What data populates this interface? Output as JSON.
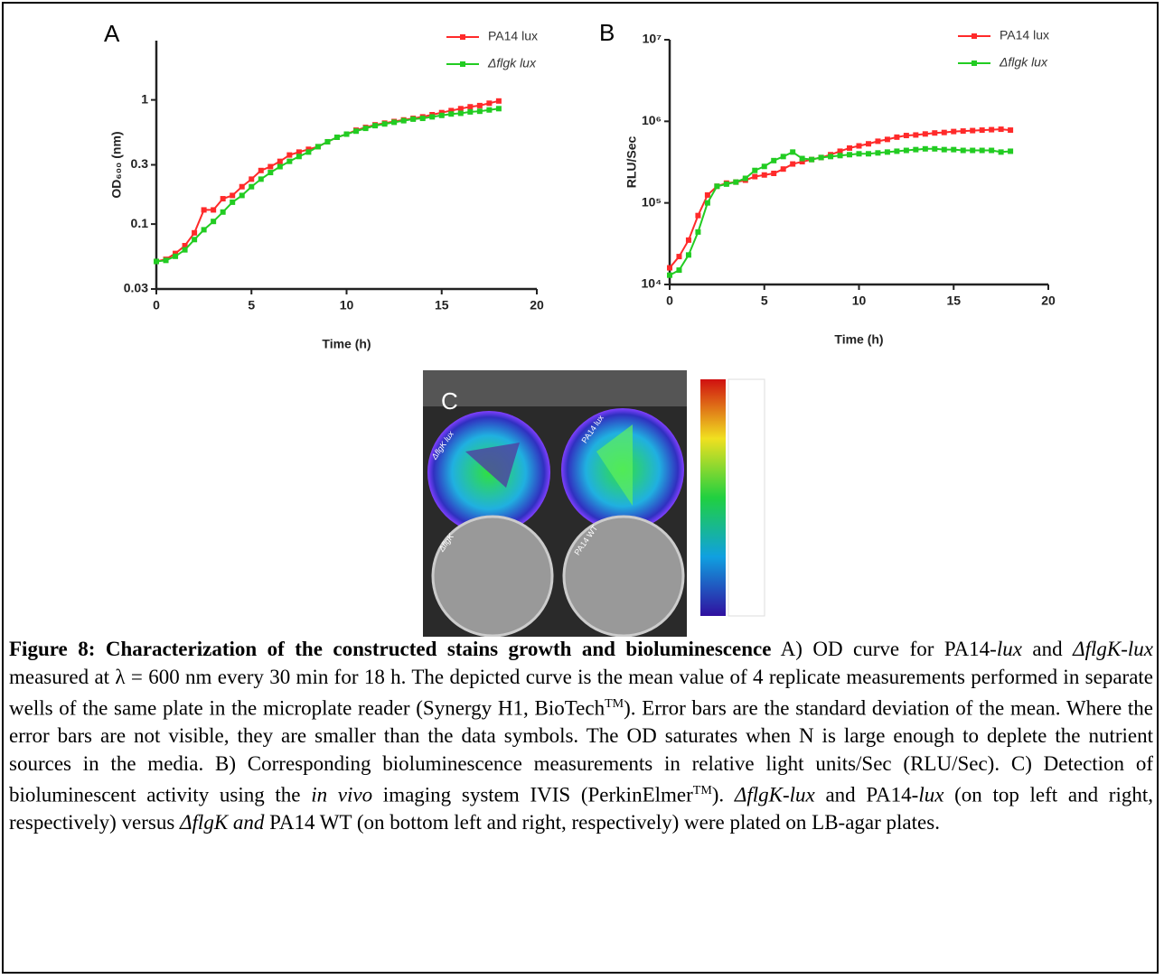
{
  "chart_data": [
    {
      "type": "line",
      "panel_label": "A",
      "xlabel": "Time (h)",
      "ylabel": "OD₆₀₀ (nm)",
      "yscale": "log",
      "xlim": [
        0,
        20
      ],
      "xticks": [
        0,
        5,
        10,
        15,
        20
      ],
      "ylim": [
        0.03,
        3
      ],
      "yticks": [
        0.03,
        0.1,
        0.3,
        1
      ],
      "legend": "upper right",
      "x": [
        0,
        0.5,
        1,
        1.5,
        2,
        2.5,
        3,
        3.5,
        4,
        4.5,
        5,
        5.5,
        6,
        6.5,
        7,
        7.5,
        8,
        8.5,
        9,
        9.5,
        10,
        10.5,
        11,
        11.5,
        12,
        12.5,
        13,
        13.5,
        14,
        14.5,
        15,
        15.5,
        16,
        16.5,
        17,
        17.5,
        18
      ],
      "series": [
        {
          "name": "PA14 lux",
          "color": "#ff2a2a",
          "values": [
            0.05,
            0.052,
            0.058,
            0.067,
            0.085,
            0.13,
            0.13,
            0.16,
            0.17,
            0.2,
            0.23,
            0.27,
            0.29,
            0.32,
            0.36,
            0.38,
            0.4,
            0.42,
            0.46,
            0.5,
            0.53,
            0.57,
            0.6,
            0.63,
            0.65,
            0.67,
            0.69,
            0.71,
            0.73,
            0.76,
            0.79,
            0.82,
            0.85,
            0.88,
            0.9,
            0.94,
            0.98
          ]
        },
        {
          "name": "Δflgk lux",
          "color": "#22cc22",
          "values": [
            0.05,
            0.051,
            0.055,
            0.062,
            0.075,
            0.09,
            0.105,
            0.125,
            0.15,
            0.17,
            0.2,
            0.23,
            0.26,
            0.29,
            0.32,
            0.35,
            0.38,
            0.42,
            0.46,
            0.5,
            0.53,
            0.56,
            0.59,
            0.62,
            0.64,
            0.66,
            0.68,
            0.7,
            0.71,
            0.73,
            0.75,
            0.77,
            0.78,
            0.8,
            0.81,
            0.83,
            0.85
          ]
        }
      ]
    },
    {
      "type": "line",
      "panel_label": "B",
      "xlabel": "Time (h)",
      "ylabel": "RLU/Sec",
      "yscale": "log",
      "xlim": [
        0,
        20
      ],
      "xticks": [
        0,
        5,
        10,
        15,
        20
      ],
      "ylim": [
        10000,
        10000000
      ],
      "yticks": [
        {
          "value": 10000,
          "label": "10⁴"
        },
        {
          "value": 100000,
          "label": "10⁵"
        },
        {
          "value": 1000000,
          "label": "10⁶"
        },
        {
          "value": 10000000,
          "label": "10⁷"
        }
      ],
      "legend": "upper right",
      "x": [
        0,
        0.5,
        1,
        1.5,
        2,
        2.5,
        3,
        3.5,
        4,
        4.5,
        5,
        5.5,
        6,
        6.5,
        7,
        7.5,
        8,
        8.5,
        9,
        9.5,
        10,
        10.5,
        11,
        11.5,
        12,
        12.5,
        13,
        13.5,
        14,
        14.5,
        15,
        15.5,
        16,
        16.5,
        17,
        17.5,
        18
      ],
      "series": [
        {
          "name": "PA14 lux",
          "color": "#ff2a2a",
          "values": [
            16000,
            22000,
            35000,
            70000,
            125000,
            160000,
            175000,
            180000,
            190000,
            210000,
            220000,
            230000,
            260000,
            300000,
            320000,
            340000,
            360000,
            390000,
            430000,
            470000,
            500000,
            530000,
            570000,
            600000,
            640000,
            670000,
            680000,
            700000,
            720000,
            730000,
            750000,
            760000,
            770000,
            780000,
            790000,
            800000,
            780000
          ]
        },
        {
          "name": "Δflgk lux",
          "color": "#22cc22",
          "values": [
            13000,
            15000,
            23000,
            44000,
            100000,
            160000,
            170000,
            180000,
            200000,
            250000,
            280000,
            330000,
            370000,
            420000,
            350000,
            340000,
            360000,
            370000,
            380000,
            390000,
            400000,
            400000,
            410000,
            420000,
            430000,
            440000,
            450000,
            460000,
            460000,
            450000,
            450000,
            440000,
            440000,
            440000,
            440000,
            420000,
            430000
          ]
        }
      ]
    }
  ],
  "panel_c": {
    "label": "C",
    "plate_labels": [
      "ΔflgK lux",
      "PA14 lux",
      "ΔflgK",
      "PA14 WT"
    ]
  },
  "caption": [
    "Figure 8: Characterization of the constructed stains growth and bioluminescence",
    " A) OD curve for PA14-",
    "lux",
    " and ",
    "ΔflgK-lux",
    " measured at λ = 600 nm every 30 min for 18 h. The depicted curve is the mean value of 4 replicate measurements performed in separate wells of the same plate in the microplate reader (Synergy H1, BioTech",
    "TM",
    "). Error bars are the standard deviation of the mean. Where the error bars are not visible, they are smaller than the data symbols. The OD saturates when N is large enough to deplete the nutrient sources in the media. B) Corresponding bioluminescence measurements in relative light units/Sec (RLU/Sec). C) Detection of bioluminescent activity using the ",
    "in vivo",
    " imaging system IVIS (PerkinElmer",
    "TM",
    "). ",
    "ΔflgK-lux",
    " and PA14-",
    "lux",
    " (on top left and right, respectively) versus ",
    "ΔflgK and",
    " PA14 WT (on bottom left and right, respectively) were plated on LB-agar plates."
  ]
}
